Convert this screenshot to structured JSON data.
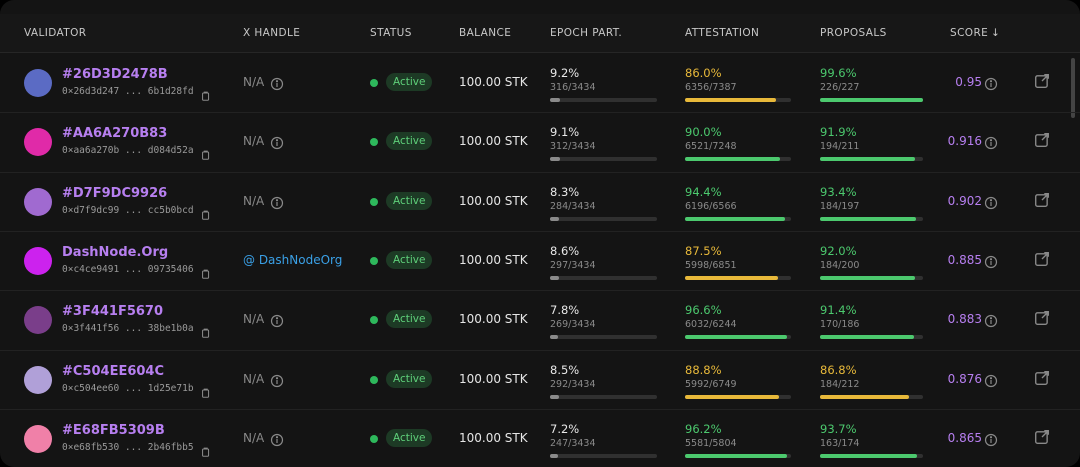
{
  "header": {
    "columns": [
      "VALIDATOR",
      "X HANDLE",
      "STATUS",
      "BALANCE",
      "EPOCH PART.",
      "ATTESTATION",
      "PROPOSALS",
      "SCORE"
    ]
  },
  "table": {
    "rows": [
      {
        "name": "#26D3D2478B",
        "address": "0×26d3d247 ... 6b1d28fd",
        "handle": "N/A",
        "status": "Active",
        "balance": "100.00 STK",
        "epoch": {
          "percent": "9.2%",
          "count": "316/3434"
        },
        "attestation": {
          "percent": "86.0%",
          "count": "6356/7387"
        },
        "proposals": {
          "percent": "99.6%",
          "count": "226/227"
        },
        "score": "0.95",
        "avatar_color": "#5b6bc4"
      },
      {
        "name": "#AA6A270B83",
        "address": "0×aa6a270b ... d084d52a",
        "handle": "N/A",
        "status": "Active",
        "balance": "100.00 STK",
        "epoch": {
          "percent": "9.1%",
          "count": "312/3434"
        },
        "attestation": {
          "percent": "90.0%",
          "count": "6521/7248"
        },
        "proposals": {
          "percent": "91.9%",
          "count": "194/211"
        },
        "score": "0.916",
        "avatar_color": "#e02aa8"
      },
      {
        "name": "#D7F9DC9926",
        "address": "0×d7f9dc99 ... cc5b0bcd",
        "handle": "N/A",
        "status": "Active",
        "balance": "100.00 STK",
        "epoch": {
          "percent": "8.3%",
          "count": "284/3434"
        },
        "attestation": {
          "percent": "94.4%",
          "count": "6196/6566"
        },
        "proposals": {
          "percent": "93.4%",
          "count": "184/197"
        },
        "score": "0.902",
        "avatar_color": "#a06ad0"
      },
      {
        "name": "DashNode.Org",
        "address": "0×c4ce9491 ... 09735406",
        "handle": "@ DashNodeOrg",
        "status": "Active",
        "balance": "100.00 STK",
        "epoch": {
          "percent": "8.6%",
          "count": "297/3434"
        },
        "attestation": {
          "percent": "87.5%",
          "count": "5998/6851"
        },
        "proposals": {
          "percent": "92.0%",
          "count": "184/200"
        },
        "score": "0.885",
        "avatar_color": "#cc22ee"
      },
      {
        "name": "#3F441F5670",
        "address": "0×3f441f56 ... 38be1b0a",
        "handle": "N/A",
        "status": "Active",
        "balance": "100.00 STK",
        "epoch": {
          "percent": "7.8%",
          "count": "269/3434"
        },
        "attestation": {
          "percent": "96.6%",
          "count": "6032/6244"
        },
        "proposals": {
          "percent": "91.4%",
          "count": "170/186"
        },
        "score": "0.883",
        "avatar_color": "#7a3e8a"
      },
      {
        "name": "#C504EE604C",
        "address": "0×c504ee60 ... 1d25e71b",
        "handle": "N/A",
        "status": "Active",
        "balance": "100.00 STK",
        "epoch": {
          "percent": "8.5%",
          "count": "292/3434"
        },
        "attestation": {
          "percent": "88.8%",
          "count": "5992/6749"
        },
        "proposals": {
          "percent": "86.8%",
          "count": "184/212"
        },
        "score": "0.876",
        "avatar_color": "#b0a0d8"
      },
      {
        "name": "#E68FB5309B",
        "address": "0×e68fb530 ... 2b46fbb5",
        "handle": "N/A",
        "status": "Active",
        "balance": "100.00 STK",
        "epoch": {
          "percent": "7.2%",
          "count": "247/3434"
        },
        "attestation": {
          "percent": "96.2%",
          "count": "5581/5804"
        },
        "proposals": {
          "percent": "93.7%",
          "count": "163/174"
        },
        "score": "0.865",
        "avatar_color": "#f080a8"
      }
    ]
  }
}
